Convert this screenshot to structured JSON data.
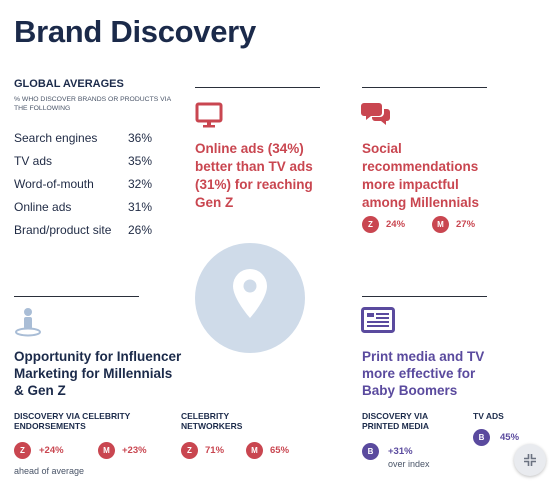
{
  "title": "Brand Discovery",
  "global_averages": {
    "heading": "GLOBAL AVERAGES",
    "subheading": "% WHO DISCOVER BRANDS OR PRODUCTS VIA THE FOLLOWING",
    "rows": [
      {
        "label": "Search engines",
        "value": "36%"
      },
      {
        "label": "TV ads",
        "value": "35%"
      },
      {
        "label": "Word-of-mouth",
        "value": "32%"
      },
      {
        "label": "Online ads",
        "value": "31%"
      },
      {
        "label": "Brand/product site",
        "value": "26%"
      }
    ]
  },
  "online_ads": {
    "icon": "monitor-icon",
    "headline": "Online ads (34%) better than TV ads (31%) for reaching Gen Z"
  },
  "social": {
    "icon": "speech-bubbles-icon",
    "headline": "Social recommendations more impactful among Millennials",
    "badges": [
      {
        "letter": "Z",
        "value": "24%"
      },
      {
        "letter": "M",
        "value": "27%"
      }
    ]
  },
  "center": {
    "icon": "location-pin-icon"
  },
  "influencer": {
    "icon": "person-icon",
    "headline": "Opportunity for Influencer Marketing for Millennials & Gen Z",
    "endorsements": {
      "label": "DISCOVERY VIA CELEBRITY ENDORSEMENTS",
      "badges": [
        {
          "letter": "Z",
          "value": "+24%"
        },
        {
          "letter": "M",
          "value": "+23%"
        }
      ],
      "note": "ahead of average"
    },
    "networkers": {
      "label": "CELEBRITY NETWORKERS",
      "badges": [
        {
          "letter": "Z",
          "value": "71%"
        },
        {
          "letter": "M",
          "value": "65%"
        }
      ]
    }
  },
  "print": {
    "icon": "newspaper-icon",
    "headline": "Print media and TV more effective for Baby Boomers",
    "printed": {
      "label": "DISCOVERY VIA PRINTED MEDIA",
      "badge": {
        "letter": "B",
        "value": "+31%"
      },
      "note": "over index"
    },
    "tv": {
      "label": "TV ADS",
      "badge": {
        "letter": "B",
        "value": "45%"
      }
    }
  },
  "colors": {
    "red": "#c94650",
    "purple": "#5a4a9e",
    "navy": "#1b2a4a",
    "circle": "#cfdbe9"
  }
}
